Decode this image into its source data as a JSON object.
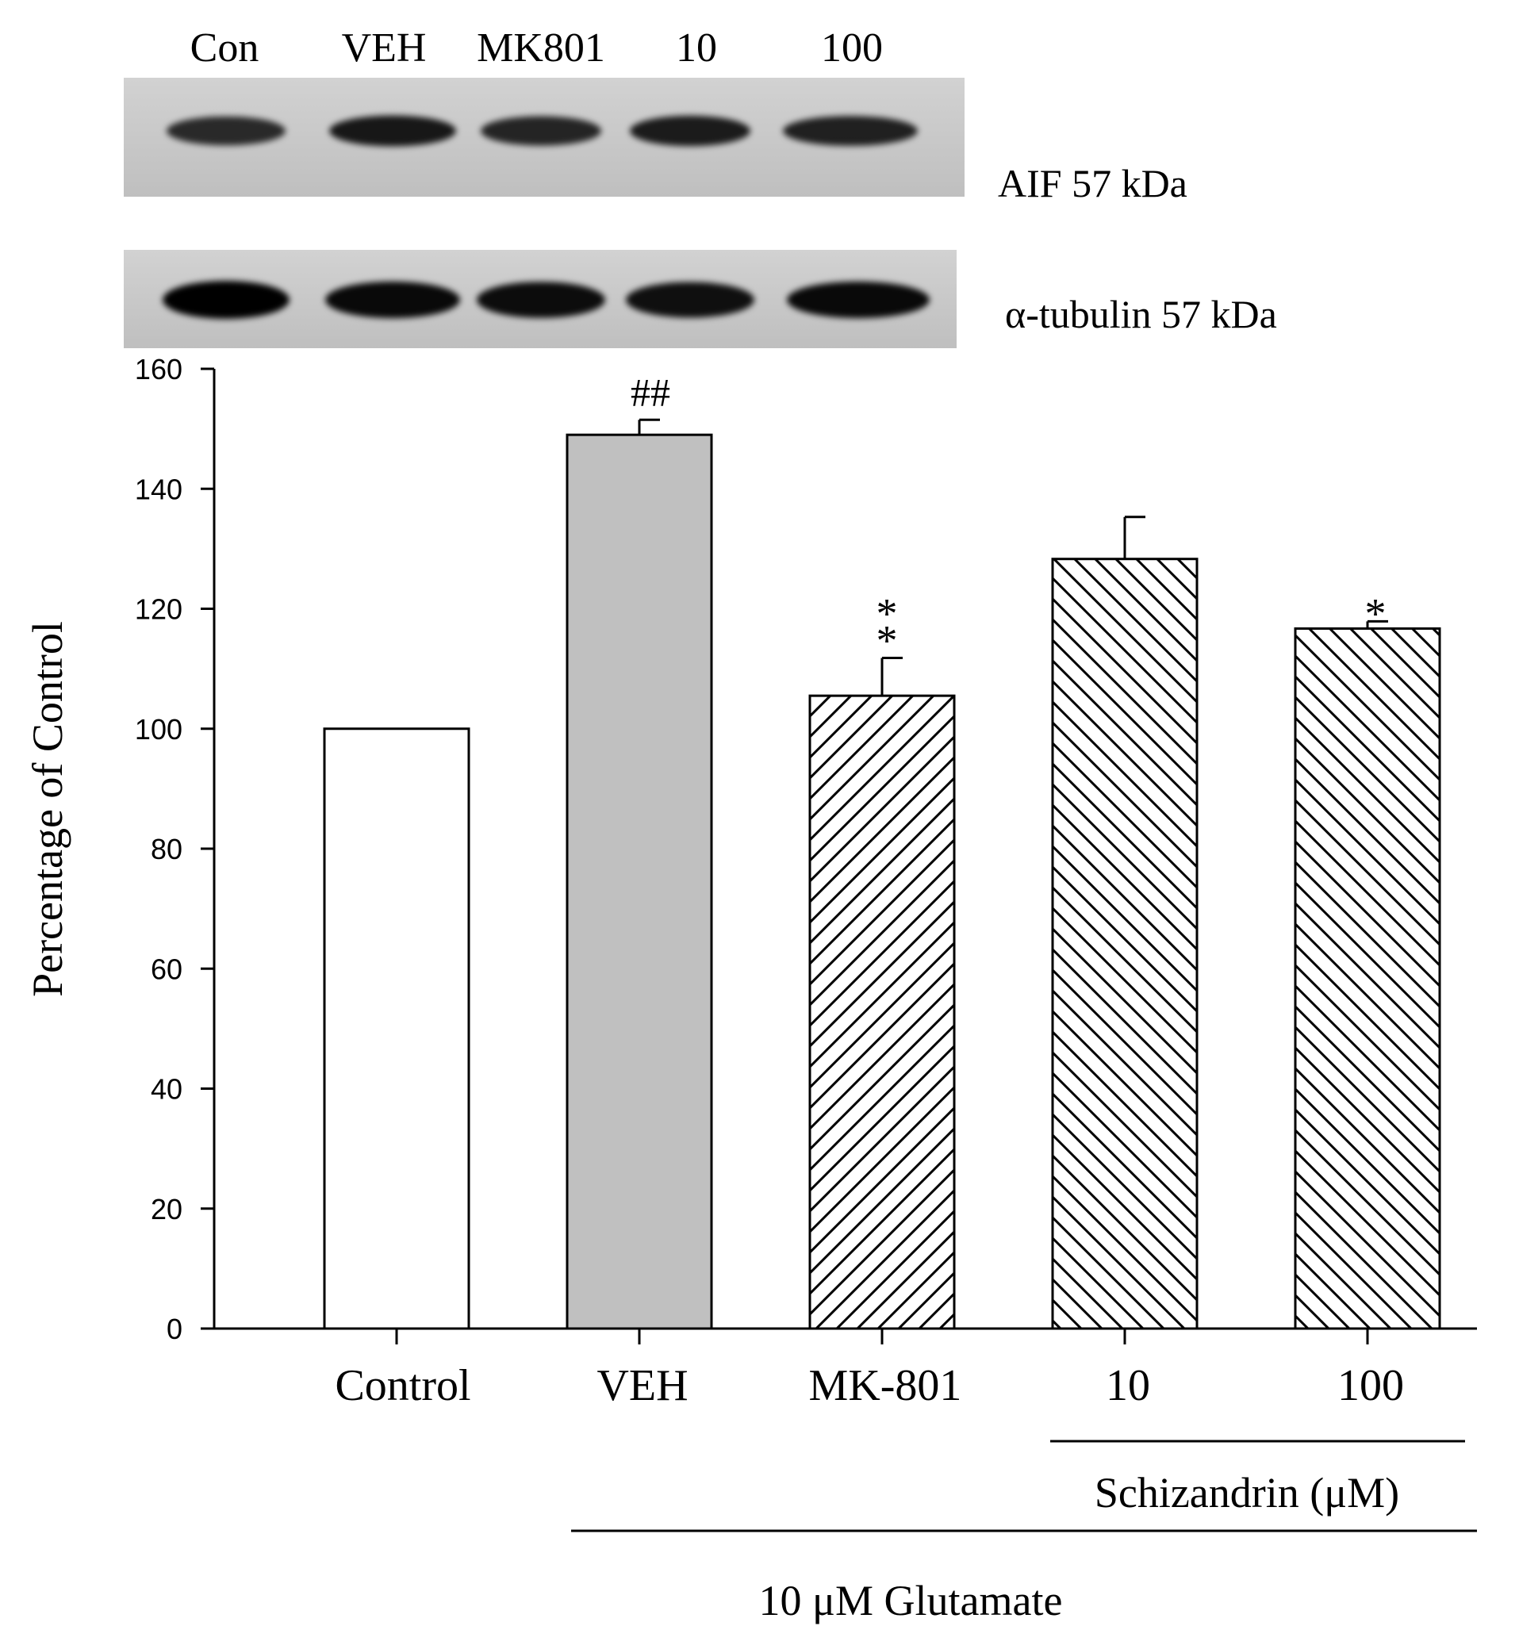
{
  "blot": {
    "lane_labels": [
      "Con",
      "VEH",
      "MK801",
      "10",
      "100"
    ],
    "aif_label": "AIF 57 kDa",
    "tubulin_label": "α-tubulin 57 kDa",
    "aif_intensity": [
      0.55,
      0.75,
      0.6,
      0.7,
      0.65
    ],
    "tubulin_intensity": [
      1.0,
      0.85,
      0.8,
      0.75,
      0.85
    ]
  },
  "chart_data": {
    "type": "bar",
    "categories": [
      "Control",
      "VEH",
      "MK-801",
      "10",
      "100"
    ],
    "values": [
      100,
      149,
      105.5,
      128.3,
      116.7
    ],
    "errors": [
      0,
      2.5,
      6.3,
      7.0,
      1.2
    ],
    "significance": [
      "",
      "##",
      "**",
      "",
      "*"
    ],
    "fill_patterns": [
      "white",
      "gray",
      "hatch-forward",
      "hatch-back",
      "hatch-back"
    ],
    "bar_color_gray": "#c0c0c0",
    "ylabel": "Percentage of Control",
    "ylim": [
      0,
      160
    ],
    "yticks": [
      "0",
      "20",
      "40",
      "60",
      "80",
      "100",
      "120",
      "140",
      "160"
    ],
    "grid": false,
    "group_labels": {
      "schizandrin": "Schizandrin (μM)",
      "glutamate": "10 μM Glutamate"
    }
  }
}
